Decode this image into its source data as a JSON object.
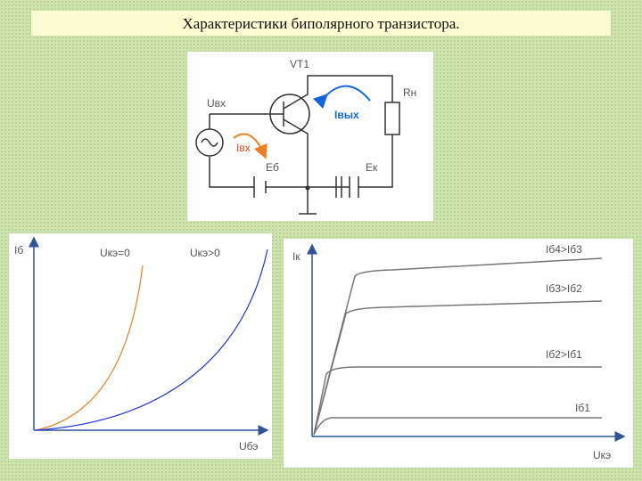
{
  "title": "Характеристики биполярного транзистора.",
  "circuit": {
    "transistor": "VT1",
    "input_voltage": "Uвх",
    "input_current": "Iвх",
    "output_current": "Iвых",
    "load": "Rн",
    "base_source": "Eб",
    "collector_source": "Eк"
  },
  "input_chart": {
    "y_label": "Iб",
    "x_label": "Uбэ",
    "curves": [
      "Uкэ=0",
      "Uкэ>0"
    ]
  },
  "output_chart": {
    "y_label": "Iк",
    "x_label": "Uкэ",
    "curves": [
      "Iб4>Iб3",
      "Iб3>Iб2",
      "Iб2>Iб1",
      "Iб1"
    ]
  }
}
